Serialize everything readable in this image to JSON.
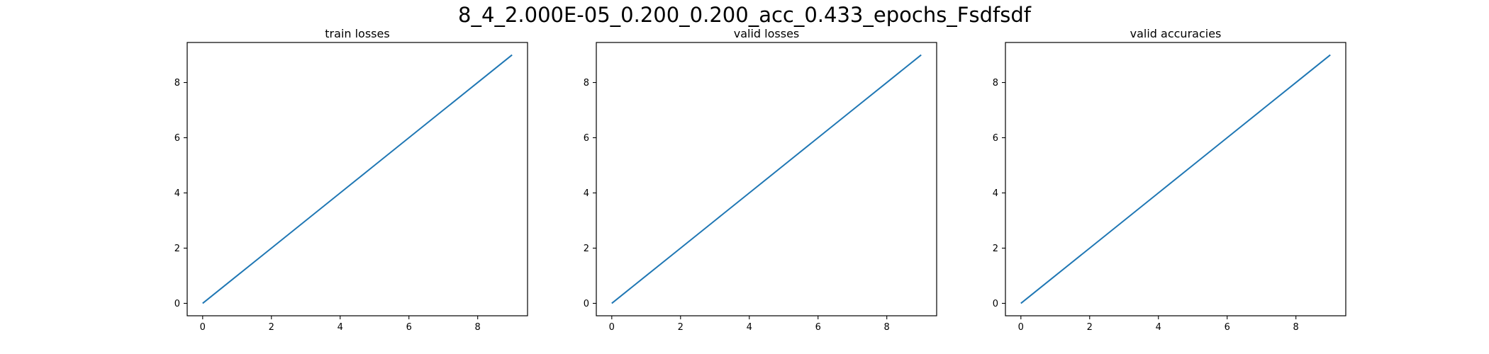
{
  "figure": {
    "title": "8_4_2.000E-05_0.200_0.200_acc_0.433_epochs_Fsdfsdf"
  },
  "chart_data": [
    {
      "type": "line",
      "title": "train losses",
      "xlabel": "",
      "ylabel": "",
      "xlim": [
        -0.45,
        9.45
      ],
      "ylim": [
        -0.45,
        9.45
      ],
      "xticks": [
        0,
        2,
        4,
        6,
        8
      ],
      "yticks": [
        0,
        2,
        4,
        6,
        8
      ],
      "grid": false,
      "series": [
        {
          "x": [
            0,
            1,
            2,
            3,
            4,
            5,
            6,
            7,
            8,
            9
          ],
          "y": [
            0,
            1,
            2,
            3,
            4,
            5,
            6,
            7,
            8,
            9
          ],
          "color": "#1f77b4"
        }
      ]
    },
    {
      "type": "line",
      "title": "valid losses",
      "xlabel": "",
      "ylabel": "",
      "xlim": [
        -0.45,
        9.45
      ],
      "ylim": [
        -0.45,
        9.45
      ],
      "xticks": [
        0,
        2,
        4,
        6,
        8
      ],
      "yticks": [
        0,
        2,
        4,
        6,
        8
      ],
      "grid": false,
      "series": [
        {
          "x": [
            0,
            1,
            2,
            3,
            4,
            5,
            6,
            7,
            8,
            9
          ],
          "y": [
            0,
            1,
            2,
            3,
            4,
            5,
            6,
            7,
            8,
            9
          ],
          "color": "#1f77b4"
        }
      ]
    },
    {
      "type": "line",
      "title": "valid accuracies",
      "xlabel": "",
      "ylabel": "",
      "xlim": [
        -0.45,
        9.45
      ],
      "ylim": [
        -0.45,
        9.45
      ],
      "xticks": [
        0,
        2,
        4,
        6,
        8
      ],
      "yticks": [
        0,
        2,
        4,
        6,
        8
      ],
      "grid": false,
      "series": [
        {
          "x": [
            0,
            1,
            2,
            3,
            4,
            5,
            6,
            7,
            8,
            9
          ],
          "y": [
            0,
            1,
            2,
            3,
            4,
            5,
            6,
            7,
            8,
            9
          ],
          "color": "#1f77b4"
        }
      ]
    }
  ]
}
